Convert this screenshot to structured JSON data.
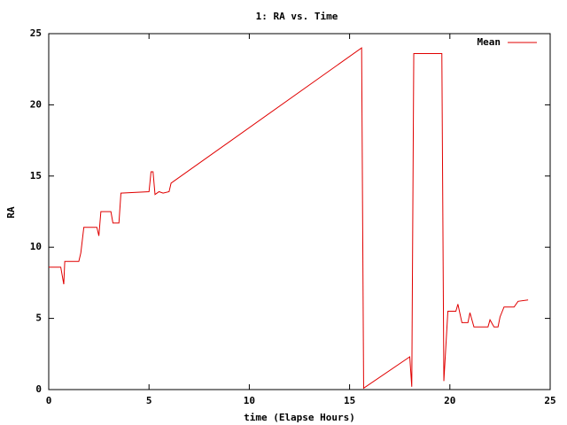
{
  "chart_data": {
    "type": "line",
    "title": "1: RA vs. Time",
    "x_label": "time (Elapse Hours)",
    "y_label": "RA",
    "x": [
      0,
      0.6,
      0.75,
      0.8,
      1.5,
      1.6,
      1.75,
      2.4,
      2.5,
      2.6,
      3.1,
      3.2,
      3.5,
      3.6,
      5.0,
      5.1,
      5.2,
      5.3,
      5.5,
      5.7,
      6.0,
      6.1,
      15.6,
      15.7,
      18.0,
      18.1,
      18.2,
      19.6,
      19.7,
      19.9,
      20.3,
      20.4,
      20.6,
      20.9,
      21.0,
      21.2,
      21.9,
      22.0,
      22.2,
      22.4,
      22.5,
      22.7,
      23.2,
      23.4,
      23.9
    ],
    "series": [
      {
        "name": "Mean",
        "color": "#e00000",
        "values": [
          8.6,
          8.6,
          7.4,
          9.0,
          9.0,
          9.6,
          11.4,
          11.4,
          10.8,
          12.5,
          12.5,
          11.7,
          11.7,
          13.8,
          13.9,
          15.3,
          15.3,
          13.7,
          13.9,
          13.8,
          13.9,
          14.5,
          24.0,
          0.1,
          2.3,
          0.2,
          23.6,
          23.6,
          0.6,
          5.5,
          5.5,
          6.0,
          4.7,
          4.7,
          5.4,
          4.4,
          4.4,
          4.9,
          4.4,
          4.4,
          5.1,
          5.8,
          5.8,
          6.2,
          6.3
        ]
      }
    ],
    "xlim": [
      0,
      25
    ],
    "xticks": [
      0,
      5,
      10,
      15,
      20,
      25
    ],
    "ylim": [
      0,
      25
    ],
    "yticks": [
      0,
      5,
      10,
      15,
      20,
      25
    ],
    "legend": "top-right",
    "grid": false
  }
}
